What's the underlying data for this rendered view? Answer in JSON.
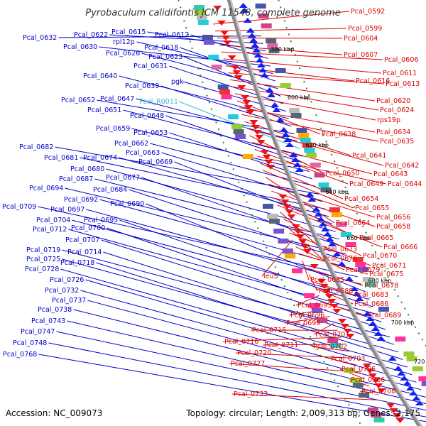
{
  "title": "Pyrobaculum calidifontis JCM 11548, complete genome",
  "footer": {
    "accession": "Accession: NC_009073",
    "summary": "Topology: circular; Length: 2,009,313 bp; Genes: 2,175"
  },
  "colors": {
    "left_label": "#0000cc",
    "right_label": "#dd0000",
    "rna_label": "#33bbdd",
    "backbone": "#888888",
    "orf_dots": "#228822"
  },
  "kbp_marks": [
    "580 kbp",
    "600 kbp",
    "620 kbp",
    "640 kbp",
    "660 kbp",
    "680 kbp",
    "700 kbp",
    "720 kbp",
    "740 kbp"
  ],
  "left_labels": [
    "Pcal_0632",
    "Pcal_0622",
    "Pcal_0615",
    "Pcal_0612",
    "Pcal_0630",
    "rpl12p",
    "Pcal_0618",
    "Pcal_0626",
    "Pcal_0623",
    "Pcal_0631",
    "pgk",
    "Pcal_0640",
    "Pcal_0639",
    "Pcal_0652",
    "Pcal_0647",
    "Pcal_R0011",
    "Pcal_0651",
    "Pcal_0648",
    "Pcal_0659",
    "Pcal_0653",
    "Pcal_0662",
    "Pcal_0682",
    "Pcal_0663",
    "Pcal_0681",
    "Pcal_0674",
    "Pcal_0669",
    "Pcal_0680",
    "Pcal_0687",
    "Pcal_0677",
    "Pcal_0694",
    "Pcal_0684",
    "Pcal_0692",
    "Pcal_0709",
    "Pcal_0697",
    "Pcal_0690",
    "Pcal_0704",
    "Pcal_0695",
    "Pcal_0712",
    "Pcal_0700",
    "Pcal_0707",
    "Pcal_0719",
    "Pcal_0714",
    "Pcal_0725",
    "Pcal_0718",
    "Pcal_0728",
    "Pcal_0726",
    "Pcal_0732",
    "Pcal_0737",
    "Pcal_0738",
    "Pcal_0743",
    "Pcal_0747",
    "Pcal_0748",
    "Pcal_0768"
  ],
  "right_labels": [
    "Pcal_0592",
    "Pcal_0599",
    "Pcal_0604",
    "Pcal_0607",
    "Pcal_0606",
    "Pcal_0611",
    "Pcal_0616",
    "Pcal_0613",
    "Pcal_0620",
    "Pcal_0624",
    "rps19p",
    "Pcal_0638",
    "Pcal_0634",
    "Pcal_0635",
    "Pcal_0641",
    "Pcal_0642",
    "Pcal_0650",
    "Pcal_0643",
    "Pcal_0649",
    "Pcal_0644",
    "Pcal_0654",
    "Pcal_0655",
    "Pcal_0664",
    "Pcal_0656",
    "Pcal_0658",
    "Pcal_0665",
    "Pcal_0666",
    "Pcal_0673",
    "Pcal_0670",
    "Pcal_0676",
    "Pcal_0671",
    "leuS",
    "Pcal_0679",
    "Pcal_0675",
    "Pcal_0685",
    "Pcal_0678",
    "Pcal_0688",
    "Pcal_0683",
    "Pcal_0686",
    "Pcal_0693",
    "Pcal_0689",
    "Pcal_0696",
    "Pcal_0699",
    "Pcal_0701",
    "Pcal_0715",
    "Pcal_0716",
    "Pcal_0711",
    "Pcal_0702",
    "Pcal_0720",
    "Pcal_0703",
    "Pcal_0727",
    "Pcal_0705",
    "Pcal_0706",
    "Pcal_0708",
    "Pcal_0733"
  ]
}
